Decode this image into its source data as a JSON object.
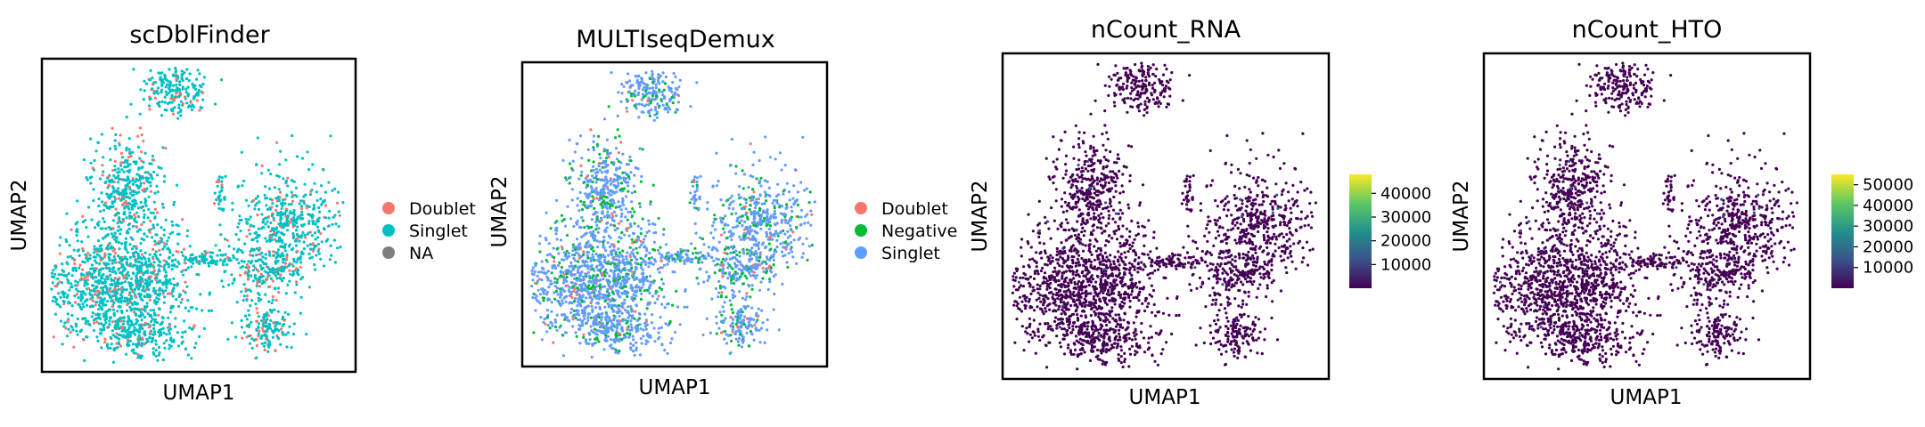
{
  "panels": [
    {
      "title": "scDblFinder",
      "xlabel": "UMAP1",
      "ylabel": "UMAP2",
      "legend": {
        "type": "categorical",
        "entries": [
          {
            "label": "Doublet",
            "color": "#f8766d"
          },
          {
            "label": "Singlet",
            "color": "#00bfc4"
          },
          {
            "label": "NA",
            "color": "#7f7f7f"
          }
        ]
      }
    },
    {
      "title": "MULTIseqDemux",
      "xlabel": "UMAP1",
      "ylabel": "UMAP2",
      "legend": {
        "type": "categorical",
        "entries": [
          {
            "label": "Doublet",
            "color": "#f8766d"
          },
          {
            "label": "Negative",
            "color": "#00ba38"
          },
          {
            "label": "Singlet",
            "color": "#619cff"
          }
        ]
      }
    },
    {
      "title": "nCount_RNA",
      "xlabel": "UMAP1",
      "ylabel": "UMAP2",
      "legend": {
        "type": "continuous",
        "colormap": "viridis",
        "range": [
          0,
          48000
        ],
        "ticks": [
          {
            "value": 10000,
            "label": "10000"
          },
          {
            "value": 20000,
            "label": "20000"
          },
          {
            "value": 30000,
            "label": "30000"
          },
          {
            "value": 40000,
            "label": "40000"
          }
        ]
      }
    },
    {
      "title": "nCount_HTO",
      "xlabel": "UMAP1",
      "ylabel": "UMAP2",
      "legend": {
        "type": "continuous",
        "colormap": "viridis",
        "range": [
          0,
          55000
        ],
        "ticks": [
          {
            "value": 10000,
            "label": "10000"
          },
          {
            "value": 20000,
            "label": "20000"
          },
          {
            "value": 30000,
            "label": "30000"
          },
          {
            "value": 40000,
            "label": "40000"
          },
          {
            "value": 50000,
            "label": "50000"
          }
        ]
      }
    }
  ],
  "chart_data": {
    "type": "scatter",
    "grid": false,
    "colors": {
      "background_cells_rna": "#440154",
      "background_cells_hto": "#440154",
      "viridis": [
        "#440154",
        "#3b528b",
        "#21918c",
        "#5ec962",
        "#fde725"
      ]
    }
  }
}
